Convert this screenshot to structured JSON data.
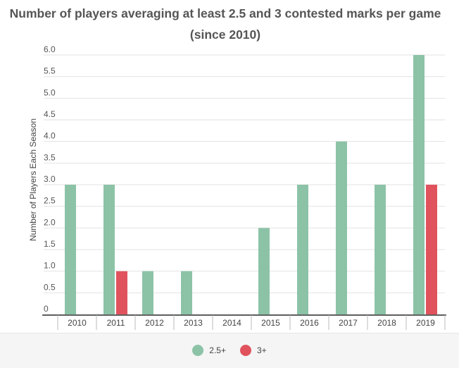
{
  "chart_data": {
    "type": "bar",
    "title_line1": "Number of players averaging at least 2.5 and 3 contested marks per game",
    "title_line2": "(since 2010)",
    "xlabel": "",
    "ylabel": "Number of Players Each Season",
    "categories": [
      "2010",
      "2011",
      "2012",
      "2013",
      "2014",
      "2015",
      "2016",
      "2017",
      "2018",
      "2019"
    ],
    "series": [
      {
        "name": "2.5+",
        "color": "#8cc3a7",
        "values": [
          3,
          3,
          1,
          1,
          0,
          2,
          3,
          4,
          3,
          6
        ]
      },
      {
        "name": "3+",
        "color": "#e0535d",
        "values": [
          0,
          1,
          0,
          0,
          0,
          0,
          0,
          0,
          0,
          3
        ]
      }
    ],
    "ylim": [
      0,
      6
    ],
    "yticks": [
      "0",
      "0.5",
      "1.0",
      "1.5",
      "2.0",
      "2.5",
      "3.0",
      "3.5",
      "4.0",
      "4.5",
      "5.0",
      "5.5",
      "6.0"
    ],
    "grid": true,
    "legend_position": "bottom"
  }
}
